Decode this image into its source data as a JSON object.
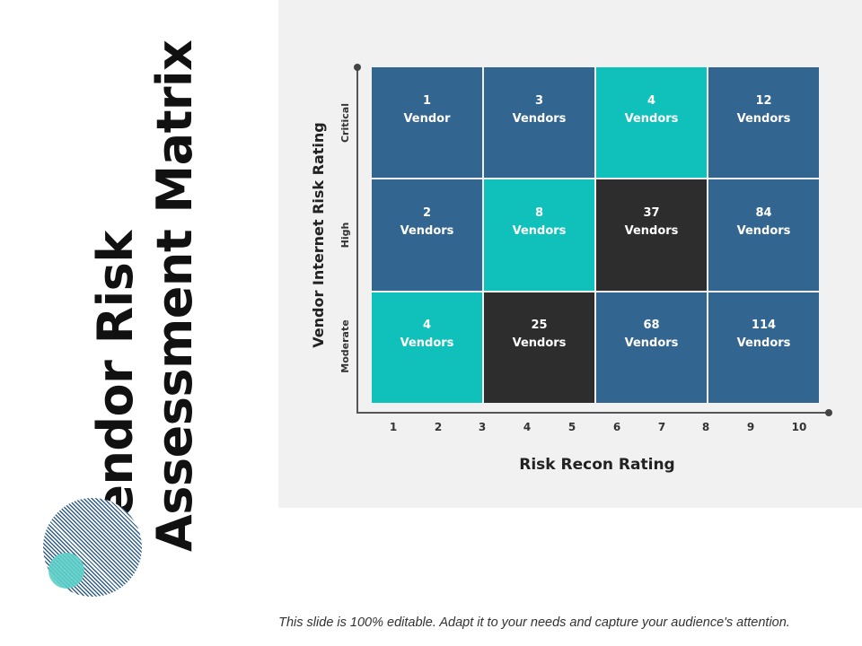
{
  "slide": {
    "title_line1": "Vendor Risk",
    "title_line2": "Assessment Matrix",
    "footer": "This slide is 100% editable. Adapt it to your needs and capture your audience's attention."
  },
  "matrix": {
    "y_axis_label": "Vendor Internet Risk Rating",
    "x_axis_label": "Risk Recon Rating",
    "row_labels": [
      "Critical",
      "High",
      "Moderate"
    ],
    "x_ticks": [
      "1",
      "2",
      "3",
      "4",
      "5",
      "6",
      "7",
      "8",
      "9",
      "10"
    ],
    "colors": {
      "blue": "#336591",
      "teal": "#10c1bb",
      "dark": "#2d2d2d"
    },
    "cells": [
      {
        "count": "1",
        "unit": "Vendor",
        "color": "blue"
      },
      {
        "count": "3",
        "unit": "Vendors",
        "color": "blue"
      },
      {
        "count": "4",
        "unit": "Vendors",
        "color": "teal"
      },
      {
        "count": "12",
        "unit": "Vendors",
        "color": "blue"
      },
      {
        "count": "2",
        "unit": "Vendors",
        "color": "blue"
      },
      {
        "count": "8",
        "unit": "Vendors",
        "color": "teal"
      },
      {
        "count": "37",
        "unit": "Vendors",
        "color": "dark"
      },
      {
        "count": "84",
        "unit": "Vendors",
        "color": "blue"
      },
      {
        "count": "4",
        "unit": "Vendors",
        "color": "teal"
      },
      {
        "count": "25",
        "unit": "Vendors",
        "color": "dark"
      },
      {
        "count": "68",
        "unit": "Vendors",
        "color": "blue"
      },
      {
        "count": "114",
        "unit": "Vendors",
        "color": "blue"
      }
    ]
  }
}
